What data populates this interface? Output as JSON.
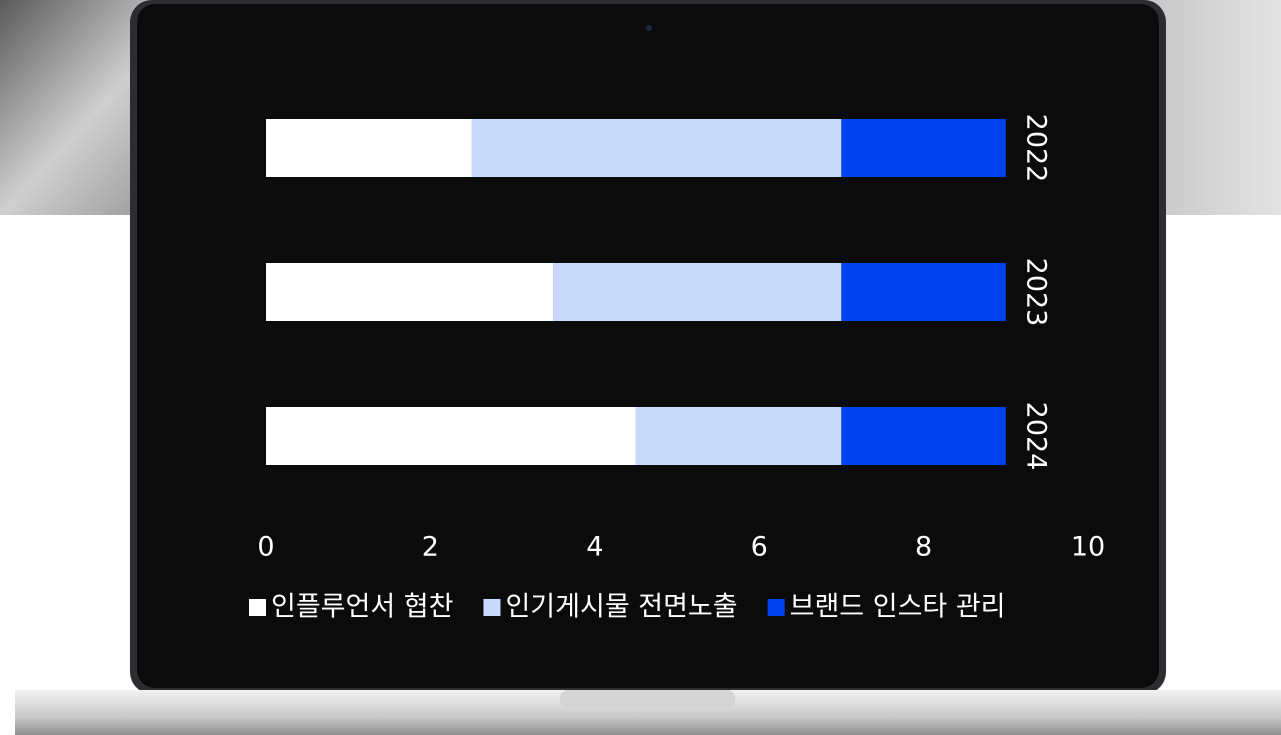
{
  "chart_data": {
    "type": "bar",
    "orientation": "horizontal",
    "stacked": true,
    "categories": [
      "2022",
      "2023",
      "2024"
    ],
    "series": [
      {
        "name": "인플루언서 협찬",
        "color": "#ffffff",
        "values": [
          2.5,
          3.5,
          4.5
        ]
      },
      {
        "name": "인기게시물 전면노출",
        "color": "#c9d9fb",
        "values": [
          4.5,
          3.5,
          2.5
        ]
      },
      {
        "name": "브랜드 인스타 관리",
        "color": "#0043f0",
        "values": [
          2,
          2,
          2
        ]
      }
    ],
    "xlim": [
      0,
      10
    ],
    "xticks": [
      0,
      2,
      4,
      6,
      8,
      10
    ],
    "grid": false,
    "legend": "bottom"
  }
}
